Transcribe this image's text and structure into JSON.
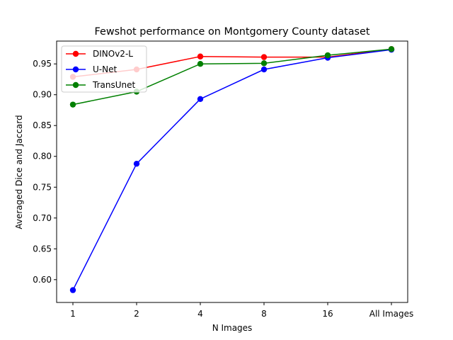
{
  "chart_data": {
    "type": "line",
    "title": "Fewshot performance on Montgomery County dataset",
    "xlabel": "N Images",
    "ylabel": "Averaged Dice and Jaccard",
    "categories": [
      "1",
      "2",
      "4",
      "8",
      "16",
      "All Images"
    ],
    "ylim": [
      0.563,
      0.987
    ],
    "yticks": [
      "0.60",
      "0.65",
      "0.70",
      "0.75",
      "0.80",
      "0.85",
      "0.90",
      "0.95"
    ],
    "grid": false,
    "legend_position": "top-left",
    "series": [
      {
        "name": "DINOv2-L",
        "color": "#ff0000",
        "values": [
          0.929,
          0.941,
          0.962,
          0.961,
          0.961,
          0.974
        ]
      },
      {
        "name": "U-Net",
        "color": "#0000ff",
        "values": [
          0.583,
          0.788,
          0.893,
          0.941,
          0.96,
          0.973
        ]
      },
      {
        "name": "TransUnet",
        "color": "#008000",
        "values": [
          0.884,
          0.905,
          0.95,
          0.951,
          0.964,
          0.974
        ]
      }
    ]
  }
}
